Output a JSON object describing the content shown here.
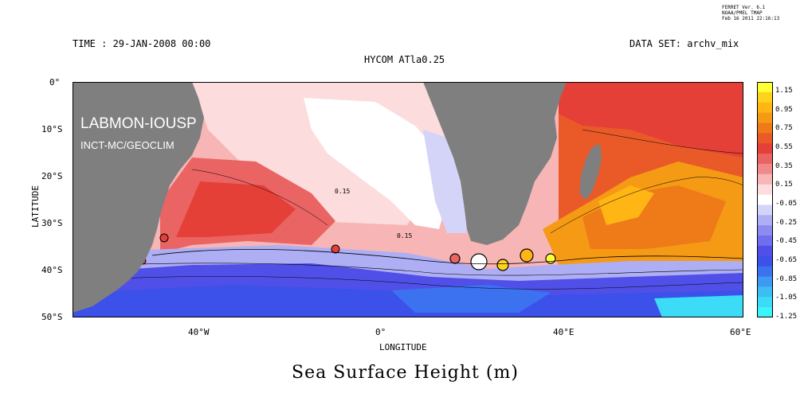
{
  "ferret": {
    "line1": "FERRET Ver. 6.1",
    "line2": "NOAA/PMEL TMAP",
    "line3": "Feb 16 2011 22:16:13"
  },
  "header": {
    "time": "TIME : 29-JAN-2008 00:00",
    "dataset": "DATA SET: archv_mix",
    "model": "HYCOM ATla0.25"
  },
  "overlay": {
    "lab": "LABMON-IOUSP",
    "inst": "INCT-MC/GEOCLIM"
  },
  "axes": {
    "ylabel": "LATITUDE",
    "xlabel": "LONGITUDE",
    "yticks": [
      "0°",
      "10°S",
      "20°S",
      "30°S",
      "40°S",
      "50°S"
    ],
    "xticks": [
      "40°W",
      "0°",
      "40°E",
      "60°E"
    ]
  },
  "contour_labels": [
    "0.15",
    "0.15"
  ],
  "colorbar": {
    "labels": [
      "1.15",
      "0.95",
      "0.75",
      "0.55",
      "0.35",
      "0.15",
      "-0.05",
      "-0.25",
      "-0.45",
      "-0.65",
      "-0.85",
      "-1.05",
      "-1.25"
    ],
    "colors": [
      "#ffff33",
      "#ffd21e",
      "#ffb514",
      "#f59a14",
      "#ef7a18",
      "#ea5a28",
      "#e54038",
      "#ea6464",
      "#f08a8a",
      "#f7b5b5",
      "#fcdcdc",
      "#ffffff",
      "#d4d4f8",
      "#aeaef5",
      "#8c8cf0",
      "#6e6eee",
      "#5050e8",
      "#3c50ea",
      "#3c72f0",
      "#3c9af2",
      "#3cbef4",
      "#3cdcf8",
      "#3cf5fc"
    ]
  },
  "footer": {
    "title": "Sea Surface Height (m)"
  },
  "colors": {
    "land": "#7f7f7f",
    "cold": "#3e4ad8",
    "neutral": "#ffffff",
    "warm": "#ea4d3e",
    "hot": "#ffcc22"
  }
}
